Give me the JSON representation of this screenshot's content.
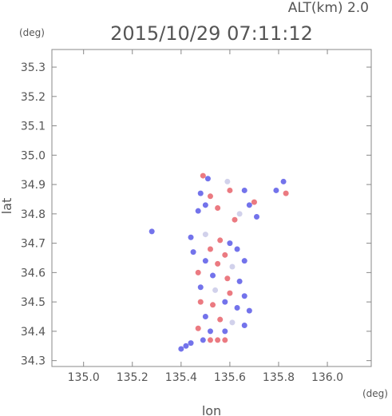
{
  "header": {
    "altitude_label": "ALT(km)  2.0",
    "timestamp": "2015/10/29 07:11:12"
  },
  "chart_data": {
    "type": "scatter",
    "xlabel": "lon",
    "ylabel": "lat",
    "xunit": "(deg)",
    "yunit": "(deg)",
    "xlim": [
      134.87,
      136.18
    ],
    "ylim": [
      34.28,
      35.36
    ],
    "xticks": [
      "135.0",
      "135.2",
      "135.4",
      "135.6",
      "135.8",
      "136.0"
    ],
    "yticks": [
      "34.3",
      "34.4",
      "34.5",
      "34.6",
      "34.7",
      "34.8",
      "34.9",
      "35.0",
      "35.1",
      "35.2",
      "35.3"
    ],
    "grid": false,
    "colors": {
      "positive": "#e8636b",
      "negative": "#5b5be8",
      "neutral": "#c9c9e8",
      "axis": "#555555"
    },
    "points": [
      {
        "x": 135.49,
        "y": 34.93,
        "s": "positive"
      },
      {
        "x": 135.51,
        "y": 34.92,
        "s": "negative"
      },
      {
        "x": 135.48,
        "y": 34.87,
        "s": "negative"
      },
      {
        "x": 135.52,
        "y": 34.86,
        "s": "positive"
      },
      {
        "x": 135.59,
        "y": 34.91,
        "s": "neutral"
      },
      {
        "x": 135.6,
        "y": 34.88,
        "s": "positive"
      },
      {
        "x": 135.66,
        "y": 34.88,
        "s": "negative"
      },
      {
        "x": 135.82,
        "y": 34.91,
        "s": "negative"
      },
      {
        "x": 135.83,
        "y": 34.87,
        "s": "positive"
      },
      {
        "x": 135.79,
        "y": 34.88,
        "s": "negative"
      },
      {
        "x": 135.7,
        "y": 34.84,
        "s": "positive"
      },
      {
        "x": 135.68,
        "y": 34.83,
        "s": "negative"
      },
      {
        "x": 135.5,
        "y": 34.83,
        "s": "negative"
      },
      {
        "x": 135.55,
        "y": 34.82,
        "s": "positive"
      },
      {
        "x": 135.64,
        "y": 34.8,
        "s": "neutral"
      },
      {
        "x": 135.71,
        "y": 34.79,
        "s": "negative"
      },
      {
        "x": 135.47,
        "y": 34.81,
        "s": "negative"
      },
      {
        "x": 135.62,
        "y": 34.78,
        "s": "positive"
      },
      {
        "x": 135.44,
        "y": 34.72,
        "s": "negative"
      },
      {
        "x": 135.28,
        "y": 34.74,
        "s": "negative"
      },
      {
        "x": 135.5,
        "y": 34.73,
        "s": "neutral"
      },
      {
        "x": 135.56,
        "y": 34.71,
        "s": "positive"
      },
      {
        "x": 135.6,
        "y": 34.7,
        "s": "negative"
      },
      {
        "x": 135.45,
        "y": 34.67,
        "s": "negative"
      },
      {
        "x": 135.52,
        "y": 34.68,
        "s": "positive"
      },
      {
        "x": 135.58,
        "y": 34.66,
        "s": "positive"
      },
      {
        "x": 135.63,
        "y": 34.68,
        "s": "negative"
      },
      {
        "x": 135.5,
        "y": 34.64,
        "s": "negative"
      },
      {
        "x": 135.55,
        "y": 34.63,
        "s": "positive"
      },
      {
        "x": 135.61,
        "y": 34.62,
        "s": "neutral"
      },
      {
        "x": 135.66,
        "y": 34.64,
        "s": "negative"
      },
      {
        "x": 135.47,
        "y": 34.6,
        "s": "positive"
      },
      {
        "x": 135.53,
        "y": 34.59,
        "s": "negative"
      },
      {
        "x": 135.59,
        "y": 34.58,
        "s": "positive"
      },
      {
        "x": 135.64,
        "y": 34.57,
        "s": "negative"
      },
      {
        "x": 135.48,
        "y": 34.55,
        "s": "negative"
      },
      {
        "x": 135.54,
        "y": 34.54,
        "s": "neutral"
      },
      {
        "x": 135.6,
        "y": 34.53,
        "s": "positive"
      },
      {
        "x": 135.66,
        "y": 34.52,
        "s": "negative"
      },
      {
        "x": 135.48,
        "y": 34.5,
        "s": "positive"
      },
      {
        "x": 135.53,
        "y": 34.49,
        "s": "positive"
      },
      {
        "x": 135.58,
        "y": 34.5,
        "s": "negative"
      },
      {
        "x": 135.63,
        "y": 34.48,
        "s": "negative"
      },
      {
        "x": 135.68,
        "y": 34.47,
        "s": "negative"
      },
      {
        "x": 135.5,
        "y": 34.45,
        "s": "negative"
      },
      {
        "x": 135.56,
        "y": 34.44,
        "s": "positive"
      },
      {
        "x": 135.61,
        "y": 34.43,
        "s": "neutral"
      },
      {
        "x": 135.66,
        "y": 34.42,
        "s": "negative"
      },
      {
        "x": 135.47,
        "y": 34.41,
        "s": "positive"
      },
      {
        "x": 135.52,
        "y": 34.4,
        "s": "negative"
      },
      {
        "x": 135.58,
        "y": 34.4,
        "s": "negative"
      },
      {
        "x": 135.44,
        "y": 34.36,
        "s": "negative"
      },
      {
        "x": 135.49,
        "y": 34.37,
        "s": "negative"
      },
      {
        "x": 135.52,
        "y": 34.37,
        "s": "positive"
      },
      {
        "x": 135.55,
        "y": 34.37,
        "s": "positive"
      },
      {
        "x": 135.58,
        "y": 34.37,
        "s": "positive"
      },
      {
        "x": 135.4,
        "y": 34.34,
        "s": "negative"
      },
      {
        "x": 135.42,
        "y": 34.35,
        "s": "negative"
      }
    ]
  }
}
